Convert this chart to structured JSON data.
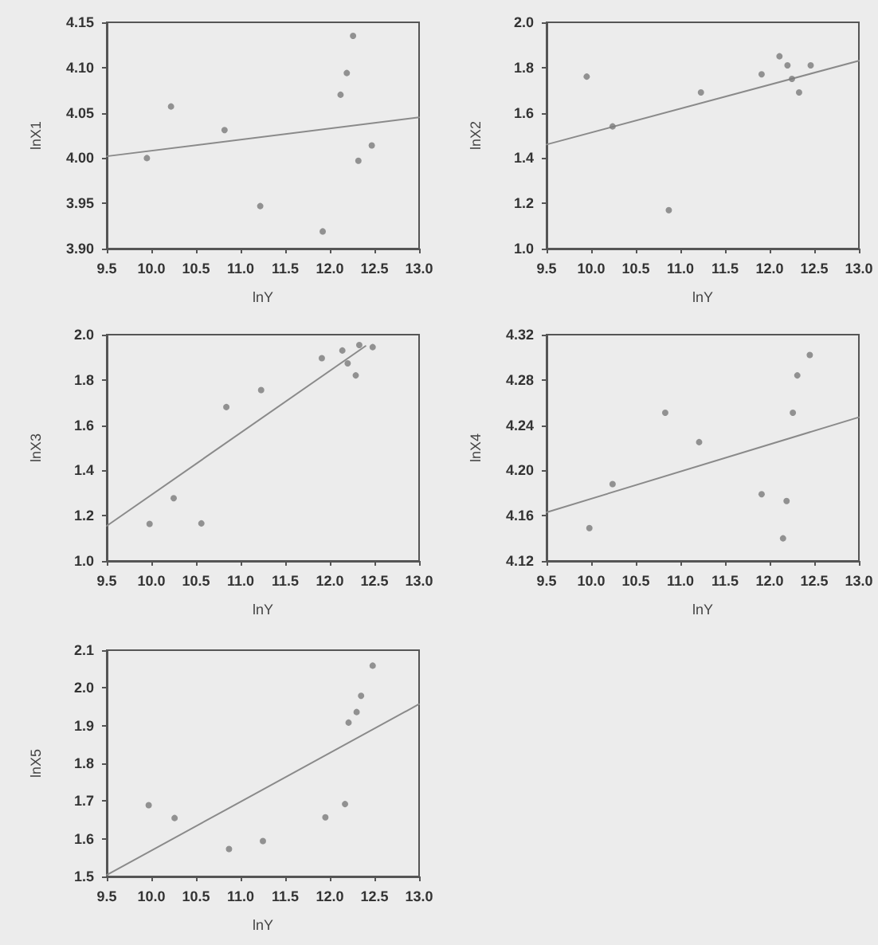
{
  "chart_data": [
    {
      "type": "scatter",
      "xlabel": "lnY",
      "ylabel": "lnX1",
      "xlim": [
        9.5,
        13.0
      ],
      "xticks": [
        9.5,
        {
          "value": 10,
          "label": "10.0"
        },
        10.5,
        {
          "value": 11,
          "label": "11.0"
        },
        11.5,
        {
          "value": 12,
          "label": "12.0"
        },
        12.5,
        {
          "value": 13,
          "label": "13.0"
        }
      ],
      "ylim": [
        3.9,
        4.15
      ],
      "yticks": [
        {
          "value": 3.9,
          "label": "3.90"
        },
        3.95,
        {
          "value": 4,
          "label": "4.00"
        },
        4.05,
        {
          "value": 4.1,
          "label": "4.10"
        },
        4.15
      ],
      "grid": false,
      "series": [
        {
          "color": "#7a7a7a",
          "marker": "circle",
          "x": [
            9.95,
            10.22,
            10.82,
            11.22,
            11.92,
            12.12,
            12.19,
            12.26,
            12.32,
            12.47
          ],
          "values": [
            4.0,
            4.057,
            4.031,
            3.947,
            3.919,
            4.07,
            4.094,
            4.135,
            3.997,
            4.014
          ]
        },
        {
          "type": "line",
          "marker": "none",
          "color": "#8a8a8a",
          "x": [
            9.5,
            13.0
          ],
          "values": [
            4.002,
            4.045
          ]
        }
      ]
    },
    {
      "type": "scatter",
      "xlabel": "lnY",
      "ylabel": "lnX2",
      "xlim": [
        9.5,
        13.0
      ],
      "xticks": [
        9.5,
        {
          "value": 10,
          "label": "10.0"
        },
        10.5,
        {
          "value": 11,
          "label": "11.0"
        },
        11.5,
        {
          "value": 12,
          "label": "12.0"
        },
        12.5,
        {
          "value": 13,
          "label": "13.0"
        }
      ],
      "ylim": [
        1.0,
        2.0
      ],
      "yticks": [
        {
          "value": 1,
          "label": "1.0"
        },
        1.2,
        1.4,
        1.6,
        1.8,
        {
          "value": 2,
          "label": "2.0"
        }
      ],
      "grid": false,
      "series": [
        {
          "color": "#7a7a7a",
          "marker": "circle",
          "x": [
            9.95,
            10.24,
            10.87,
            11.23,
            11.91,
            12.11,
            12.2,
            12.25,
            12.33,
            12.46
          ],
          "values": [
            1.76,
            1.54,
            1.17,
            1.69,
            1.77,
            1.85,
            1.81,
            1.75,
            1.69,
            1.81
          ]
        },
        {
          "type": "line",
          "marker": "none",
          "color": "#8a8a8a",
          "x": [
            9.5,
            13.0
          ],
          "values": [
            1.46,
            1.83
          ]
        }
      ]
    },
    {
      "type": "scatter",
      "xlabel": "lnY",
      "ylabel": "lnX3",
      "xlim": [
        9.5,
        13.0
      ],
      "xticks": [
        9.5,
        {
          "value": 10,
          "label": "10.0"
        },
        10.5,
        {
          "value": 11,
          "label": "11.0"
        },
        11.5,
        {
          "value": 12,
          "label": "12.0"
        },
        12.5,
        {
          "value": 13,
          "label": "13.0"
        }
      ],
      "ylim": [
        1.0,
        2.0
      ],
      "yticks": [
        {
          "value": 1,
          "label": "1.0"
        },
        1.2,
        1.4,
        1.6,
        1.8,
        {
          "value": 2,
          "label": "2.0"
        }
      ],
      "grid": false,
      "series": [
        {
          "color": "#7a7a7a",
          "marker": "circle",
          "x": [
            9.98,
            10.25,
            10.56,
            10.84,
            11.23,
            11.91,
            12.14,
            12.2,
            12.29,
            12.33,
            12.48
          ],
          "values": [
            1.164,
            1.277,
            1.166,
            1.68,
            1.755,
            1.896,
            1.93,
            1.873,
            1.82,
            1.954,
            1.945
          ]
        },
        {
          "type": "line",
          "marker": "none",
          "color": "#8a8a8a",
          "x": [
            9.5,
            12.4
          ],
          "values": [
            1.155,
            1.95
          ]
        }
      ]
    },
    {
      "type": "scatter",
      "xlabel": "lnY",
      "ylabel": "lnX4",
      "xlim": [
        9.5,
        13.0
      ],
      "xticks": [
        9.5,
        {
          "value": 10,
          "label": "10.0"
        },
        10.5,
        {
          "value": 11,
          "label": "11.0"
        },
        11.5,
        {
          "value": 12,
          "label": "12.0"
        },
        12.5,
        {
          "value": 13,
          "label": "13.0"
        }
      ],
      "ylim": [
        4.12,
        4.32
      ],
      "yticks": [
        4.12,
        4.16,
        {
          "value": 4.2,
          "label": "4.20"
        },
        4.24,
        4.28,
        4.32
      ],
      "grid": false,
      "series": [
        {
          "color": "#7a7a7a",
          "marker": "circle",
          "x": [
            9.98,
            10.24,
            10.83,
            11.21,
            11.91,
            12.15,
            12.19,
            12.26,
            12.31,
            12.45
          ],
          "values": [
            4.149,
            4.188,
            4.251,
            4.225,
            4.179,
            4.14,
            4.173,
            4.251,
            4.284,
            4.302
          ]
        },
        {
          "type": "line",
          "marker": "none",
          "color": "#8a8a8a",
          "x": [
            9.5,
            13.0
          ],
          "values": [
            4.163,
            4.247
          ]
        }
      ]
    },
    {
      "type": "scatter",
      "xlabel": "lnY",
      "ylabel": "lnX5",
      "xlim": [
        9.5,
        13.0
      ],
      "xticks": [
        9.5,
        {
          "value": 10,
          "label": "10.0"
        },
        10.5,
        {
          "value": 11,
          "label": "11.0"
        },
        11.5,
        {
          "value": 12,
          "label": "12.0"
        },
        12.5,
        {
          "value": 13,
          "label": "13.0"
        }
      ],
      "ylim": [
        1.5,
        2.1
      ],
      "yticks": [
        1.5,
        1.6,
        1.7,
        1.8,
        1.9,
        {
          "value": 2,
          "label": "2.0"
        },
        2.1
      ],
      "grid": false,
      "series": [
        {
          "color": "#7a7a7a",
          "marker": "circle",
          "x": [
            9.97,
            10.26,
            10.87,
            11.25,
            11.95,
            12.17,
            12.21,
            12.3,
            12.35,
            12.48
          ],
          "values": [
            1.689,
            1.655,
            1.573,
            1.594,
            1.657,
            1.692,
            1.908,
            1.936,
            1.979,
            2.059
          ]
        },
        {
          "type": "line",
          "marker": "none",
          "color": "#8a8a8a",
          "x": [
            9.5,
            13.0
          ],
          "values": [
            1.504,
            1.957
          ]
        }
      ]
    }
  ]
}
